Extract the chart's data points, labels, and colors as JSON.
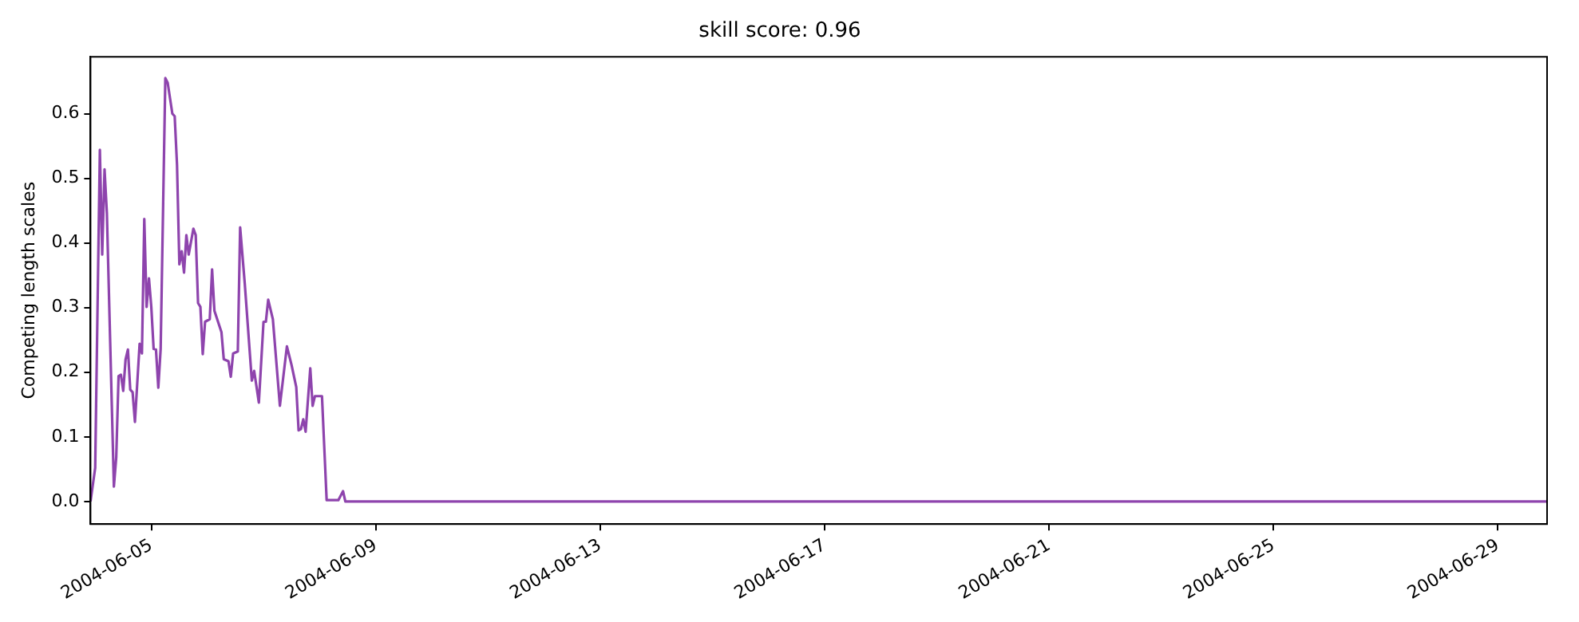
{
  "chart_data": {
    "type": "line",
    "title": "skill score: 0.96",
    "ylabel": "Competing length scales",
    "x": [
      "2004-06-03T22:00",
      "2004-06-04T00:00",
      "2004-06-04T02:00",
      "2004-06-04T03:00",
      "2004-06-04T04:00",
      "2004-06-04T05:00",
      "2004-06-04T08:00",
      "2004-06-04T09:00",
      "2004-06-04T10:00",
      "2004-06-04T11:00",
      "2004-06-04T12:00",
      "2004-06-04T13:00",
      "2004-06-04T14:00",
      "2004-06-04T15:00",
      "2004-06-04T16:00",
      "2004-06-04T17:00",
      "2004-06-04T19:00",
      "2004-06-04T20:00",
      "2004-06-04T21:00",
      "2004-06-04T22:00",
      "2004-06-04T23:00",
      "2004-06-05T00:00",
      "2004-06-05T01:00",
      "2004-06-05T02:00",
      "2004-06-05T03:00",
      "2004-06-05T04:00",
      "2004-06-05T06:00",
      "2004-06-05T07:00",
      "2004-06-05T09:00",
      "2004-06-05T10:00",
      "2004-06-05T11:00",
      "2004-06-05T12:00",
      "2004-06-05T13:00",
      "2004-06-05T14:00",
      "2004-06-05T15:00",
      "2004-06-05T16:00",
      "2004-06-05T18:00",
      "2004-06-05T19:00",
      "2004-06-05T20:00",
      "2004-06-05T21:00",
      "2004-06-05T22:00",
      "2004-06-05T23:00",
      "2004-06-06T01:00",
      "2004-06-06T02:00",
      "2004-06-06T03:00",
      "2004-06-06T06:00",
      "2004-06-06T07:00",
      "2004-06-06T09:00",
      "2004-06-06T10:00",
      "2004-06-06T11:00",
      "2004-06-06T13:00",
      "2004-06-06T14:00",
      "2004-06-06T16:00",
      "2004-06-06T19:00",
      "2004-06-06T20:00",
      "2004-06-06T22:00",
      "2004-06-07T00:00",
      "2004-06-07T01:00",
      "2004-06-07T02:00",
      "2004-06-07T04:00",
      "2004-06-07T07:00",
      "2004-06-07T10:00",
      "2004-06-07T12:00",
      "2004-06-07T14:00",
      "2004-06-07T15:00",
      "2004-06-07T16:00",
      "2004-06-07T17:00",
      "2004-06-07T18:00",
      "2004-06-07T20:00",
      "2004-06-07T21:00",
      "2004-06-07T22:00",
      "2004-06-08T01:00",
      "2004-06-08T03:00",
      "2004-06-08T08:00",
      "2004-06-08T10:00",
      "2004-06-08T11:00",
      "2004-06-29T21:00"
    ],
    "series": [
      {
        "color": "#8e44ad",
        "values": [
          0,
          0.052,
          0.544,
          0.382,
          0.514,
          0.446,
          0.023,
          0.068,
          0.194,
          0.196,
          0.171,
          0.22,
          0.235,
          0.173,
          0.169,
          0.123,
          0.244,
          0.229,
          0.437,
          0.301,
          0.345,
          0.301,
          0.236,
          0.235,
          0.176,
          0.236,
          0.655,
          0.648,
          0.6,
          0.596,
          0.521,
          0.367,
          0.387,
          0.354,
          0.412,
          0.382,
          0.422,
          0.412,
          0.307,
          0.301,
          0.228,
          0.278,
          0.282,
          0.359,
          0.295,
          0.262,
          0.22,
          0.217,
          0.193,
          0.229,
          0.232,
          0.424,
          0.336,
          0.187,
          0.202,
          0.153,
          0.278,
          0.278,
          0.312,
          0.282,
          0.148,
          0.24,
          0.211,
          0.177,
          0.11,
          0.112,
          0.127,
          0.108,
          0.206,
          0.148,
          0.163,
          0.163,
          0.002,
          0.002,
          0.016,
          0,
          0
        ]
      }
    ],
    "xlim": [
      "2004-06-03T22:00",
      "2004-06-29T21:00"
    ],
    "xticks": [
      "2004-06-05",
      "2004-06-09",
      "2004-06-13",
      "2004-06-17",
      "2004-06-21",
      "2004-06-25",
      "2004-06-29"
    ],
    "ylim": [
      -0.035,
      0.688
    ],
    "yticks": [
      {
        "value": 0,
        "label": "0.0"
      },
      {
        "value": 0.1,
        "label": "0.1"
      },
      {
        "value": 0.2,
        "label": "0.2"
      },
      {
        "value": 0.3,
        "label": "0.3"
      },
      {
        "value": 0.4,
        "label": "0.4"
      },
      {
        "value": 0.5,
        "label": "0.5"
      },
      {
        "value": 0.6,
        "label": "0.6"
      }
    ],
    "grid": false,
    "legend": false,
    "line_style": "solid",
    "marker": "none"
  }
}
